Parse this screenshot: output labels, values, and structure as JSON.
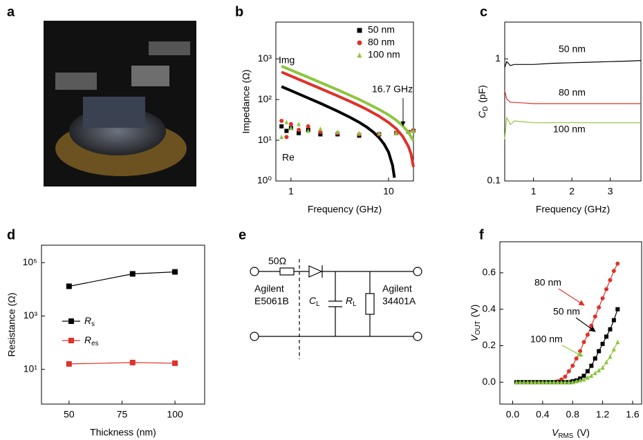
{
  "panel_labels": [
    "a",
    "b",
    "c",
    "d",
    "e",
    "f"
  ],
  "chart_data": [
    {
      "type": "line",
      "xlabel": "Frequency (GHz)",
      "ylabel": "Impedance (Ω)",
      "xlog": true,
      "ylog": true,
      "xlim": [
        0.7,
        18
      ],
      "ylim": [
        1,
        8000
      ],
      "xticks": [
        1,
        10
      ],
      "yticks": [
        {
          "value": 1,
          "label": "10⁰"
        },
        {
          "value": 10,
          "label": "10¹"
        },
        {
          "value": 100,
          "label": "10²"
        },
        {
          "value": 1000,
          "label": "10³"
        }
      ],
      "legend": "upper right",
      "annotations": [
        "Img",
        "Re",
        "16.7 GHz"
      ],
      "series": [
        {
          "name": "50 nm",
          "color": "#000000",
          "marker": "square",
          "x": [
            0.8,
            1,
            1.5,
            2,
            3,
            4,
            5,
            6,
            7,
            8,
            9,
            10,
            11,
            11.5
          ],
          "values": [
            208,
            166,
            109,
            81,
            52,
            37,
            27.6,
            20.9,
            15.8,
            11.6,
            8.1,
            5.1,
            2.4,
            1.2
          ],
          "re_x": [
            0.8,
            0.9,
            1,
            1.2,
            1.5,
            2,
            3,
            5,
            8,
            12,
            16,
            18
          ],
          "re_values": [
            22,
            17,
            20,
            15,
            18,
            14,
            14,
            13,
            14,
            15,
            16,
            17
          ]
        },
        {
          "name": "80 nm",
          "color": "#e0302a",
          "marker": "circle",
          "x": [
            0.8,
            1,
            1.5,
            2,
            3,
            4,
            5,
            6,
            8,
            10,
            12,
            14,
            16,
            17,
            18
          ],
          "values": [
            474,
            378,
            251,
            187,
            123,
            91,
            71,
            57,
            39,
            27.4,
            19.1,
            12.4,
            7.0,
            4.6,
            2.2
          ],
          "re_x": [
            0.8,
            0.9,
            1,
            1.2,
            1.5,
            2,
            3,
            5,
            8,
            12,
            16,
            18
          ],
          "re_values": [
            30,
            12,
            25,
            18,
            22,
            16,
            15,
            14,
            14,
            15,
            16,
            17
          ]
        },
        {
          "name": "100 nm",
          "color": "#8cc63f",
          "marker": "triangle",
          "x": [
            0.8,
            1,
            1.5,
            2,
            3,
            4,
            5,
            6,
            8,
            10,
            12,
            14,
            16,
            18
          ],
          "values": [
            662,
            529,
            352,
            263,
            174,
            128,
            100,
            81,
            57,
            42,
            31,
            22.5,
            15.6,
            9.7
          ],
          "re_x": [
            0.8,
            0.9,
            1,
            1.2,
            1.5,
            2,
            3,
            5,
            8,
            12,
            16,
            18
          ],
          "re_values": [
            12,
            28,
            20,
            25,
            17,
            19,
            16,
            15,
            15,
            15,
            16,
            17
          ]
        }
      ]
    },
    {
      "type": "line",
      "xlabel": "Frequency (GHz)",
      "ylabel": {
        "symbol": "C",
        "subscript": "D",
        "unit": "(pF)"
      },
      "ylog": true,
      "xlim": [
        0.25,
        3.8
      ],
      "ylim": [
        0.1,
        2
      ],
      "xticks": [
        1,
        2,
        3
      ],
      "yticks": [
        0.1,
        1
      ],
      "inline_labels": true,
      "x": [
        0.25,
        0.3,
        0.4,
        0.5,
        1,
        1.5,
        2,
        2.5,
        3,
        3.5,
        3.8
      ],
      "series": [
        {
          "name": "50 nm",
          "color": "#000000",
          "values": [
            0.85,
            0.95,
            0.88,
            0.9,
            0.9,
            0.92,
            0.93,
            0.94,
            0.95,
            0.96,
            0.97
          ]
        },
        {
          "name": "80 nm",
          "color": "#e0302a",
          "values": [
            0.55,
            0.47,
            0.44,
            0.44,
            0.43,
            0.43,
            0.43,
            0.43,
            0.43,
            0.43,
            0.43
          ]
        },
        {
          "name": "100 nm",
          "color": "#8cc63f",
          "values": [
            0.22,
            0.33,
            0.29,
            0.31,
            0.3,
            0.3,
            0.3,
            0.3,
            0.3,
            0.3,
            0.3
          ]
        }
      ]
    },
    {
      "type": "line",
      "xlabel": "Thickness (nm)",
      "ylabel": "Resistance (Ω)",
      "ylog": true,
      "xlim": [
        37,
        114
      ],
      "ylim": [
        0.5,
        450000
      ],
      "xticks": [
        50,
        75,
        100
      ],
      "yticks": [
        {
          "value": 10,
          "label": "10¹"
        },
        {
          "value": 1000,
          "label": "10³"
        },
        {
          "value": 100000,
          "label": "10⁵"
        }
      ],
      "legend": "center left",
      "x": [
        50,
        80,
        100
      ],
      "series": [
        {
          "name": {
            "symbol": "R",
            "subscript": "s"
          },
          "color": "#000000",
          "marker": "square",
          "values": [
            13000,
            38000,
            45000
          ]
        },
        {
          "name": {
            "symbol": "R",
            "subscript": "es"
          },
          "color": "#e0302a",
          "marker": "square",
          "values": [
            16,
            18,
            17
          ]
        }
      ]
    },
    {
      "type": "line",
      "xlabel": {
        "symbol": "V",
        "subscript": "RMS",
        "unit": "(V)"
      },
      "ylabel": {
        "symbol": "V",
        "subscript": "OUT",
        "unit": "(V)"
      },
      "xlim": [
        -0.17,
        1.72
      ],
      "ylim": [
        -0.12,
        0.77
      ],
      "xticks": [
        {
          "value": 0,
          "label": "0.0"
        },
        0.4,
        0.8,
        1.2,
        1.6
      ],
      "yticks": [
        {
          "value": 0,
          "label": "0.0"
        },
        0.2,
        0.4,
        0.6
      ],
      "inline_labels": true,
      "x": [
        0.05,
        0.1,
        0.15,
        0.2,
        0.25,
        0.3,
        0.35,
        0.4,
        0.45,
        0.5,
        0.55,
        0.6,
        0.65,
        0.7,
        0.75,
        0.8,
        0.85,
        0.9,
        0.95,
        1,
        1.05,
        1.1,
        1.15,
        1.2,
        1.25,
        1.3,
        1.35,
        1.4
      ],
      "series": [
        {
          "name": "80 nm",
          "color": "#e0302a",
          "marker": "circle",
          "values": [
            0,
            0,
            0,
            0,
            0,
            0,
            0,
            0,
            0,
            0,
            0,
            0.005,
            0.015,
            0.03,
            0.06,
            0.09,
            0.13,
            0.17,
            0.22,
            0.26,
            0.31,
            0.36,
            0.41,
            0.46,
            0.51,
            0.56,
            0.61,
            0.65
          ]
        },
        {
          "name": "50 nm",
          "color": "#000000",
          "marker": "square",
          "values": [
            0,
            0,
            0,
            0,
            0,
            0,
            0,
            0,
            0,
            0,
            0,
            0,
            0,
            0,
            0,
            0.005,
            0.01,
            0.02,
            0.035,
            0.06,
            0.09,
            0.13,
            0.17,
            0.21,
            0.25,
            0.29,
            0.34,
            0.4
          ]
        },
        {
          "name": "100 nm",
          "color": "#8cc63f",
          "marker": "triangle",
          "values": [
            0,
            0,
            0,
            0,
            0,
            0,
            0,
            0,
            0,
            0,
            0,
            0,
            0,
            0,
            0,
            0,
            0.005,
            0.01,
            0.015,
            0.025,
            0.035,
            0.05,
            0.065,
            0.08,
            0.11,
            0.14,
            0.18,
            0.22
          ]
        }
      ]
    }
  ],
  "circuit": {
    "resistor": "50Ω",
    "source": [
      "Agilent",
      "E5061B"
    ],
    "capacitor": {
      "symbol": "C",
      "subscript": "L"
    },
    "load": {
      "symbol": "R",
      "subscript": "L"
    },
    "meter": [
      "Agilent",
      "34401A"
    ]
  }
}
